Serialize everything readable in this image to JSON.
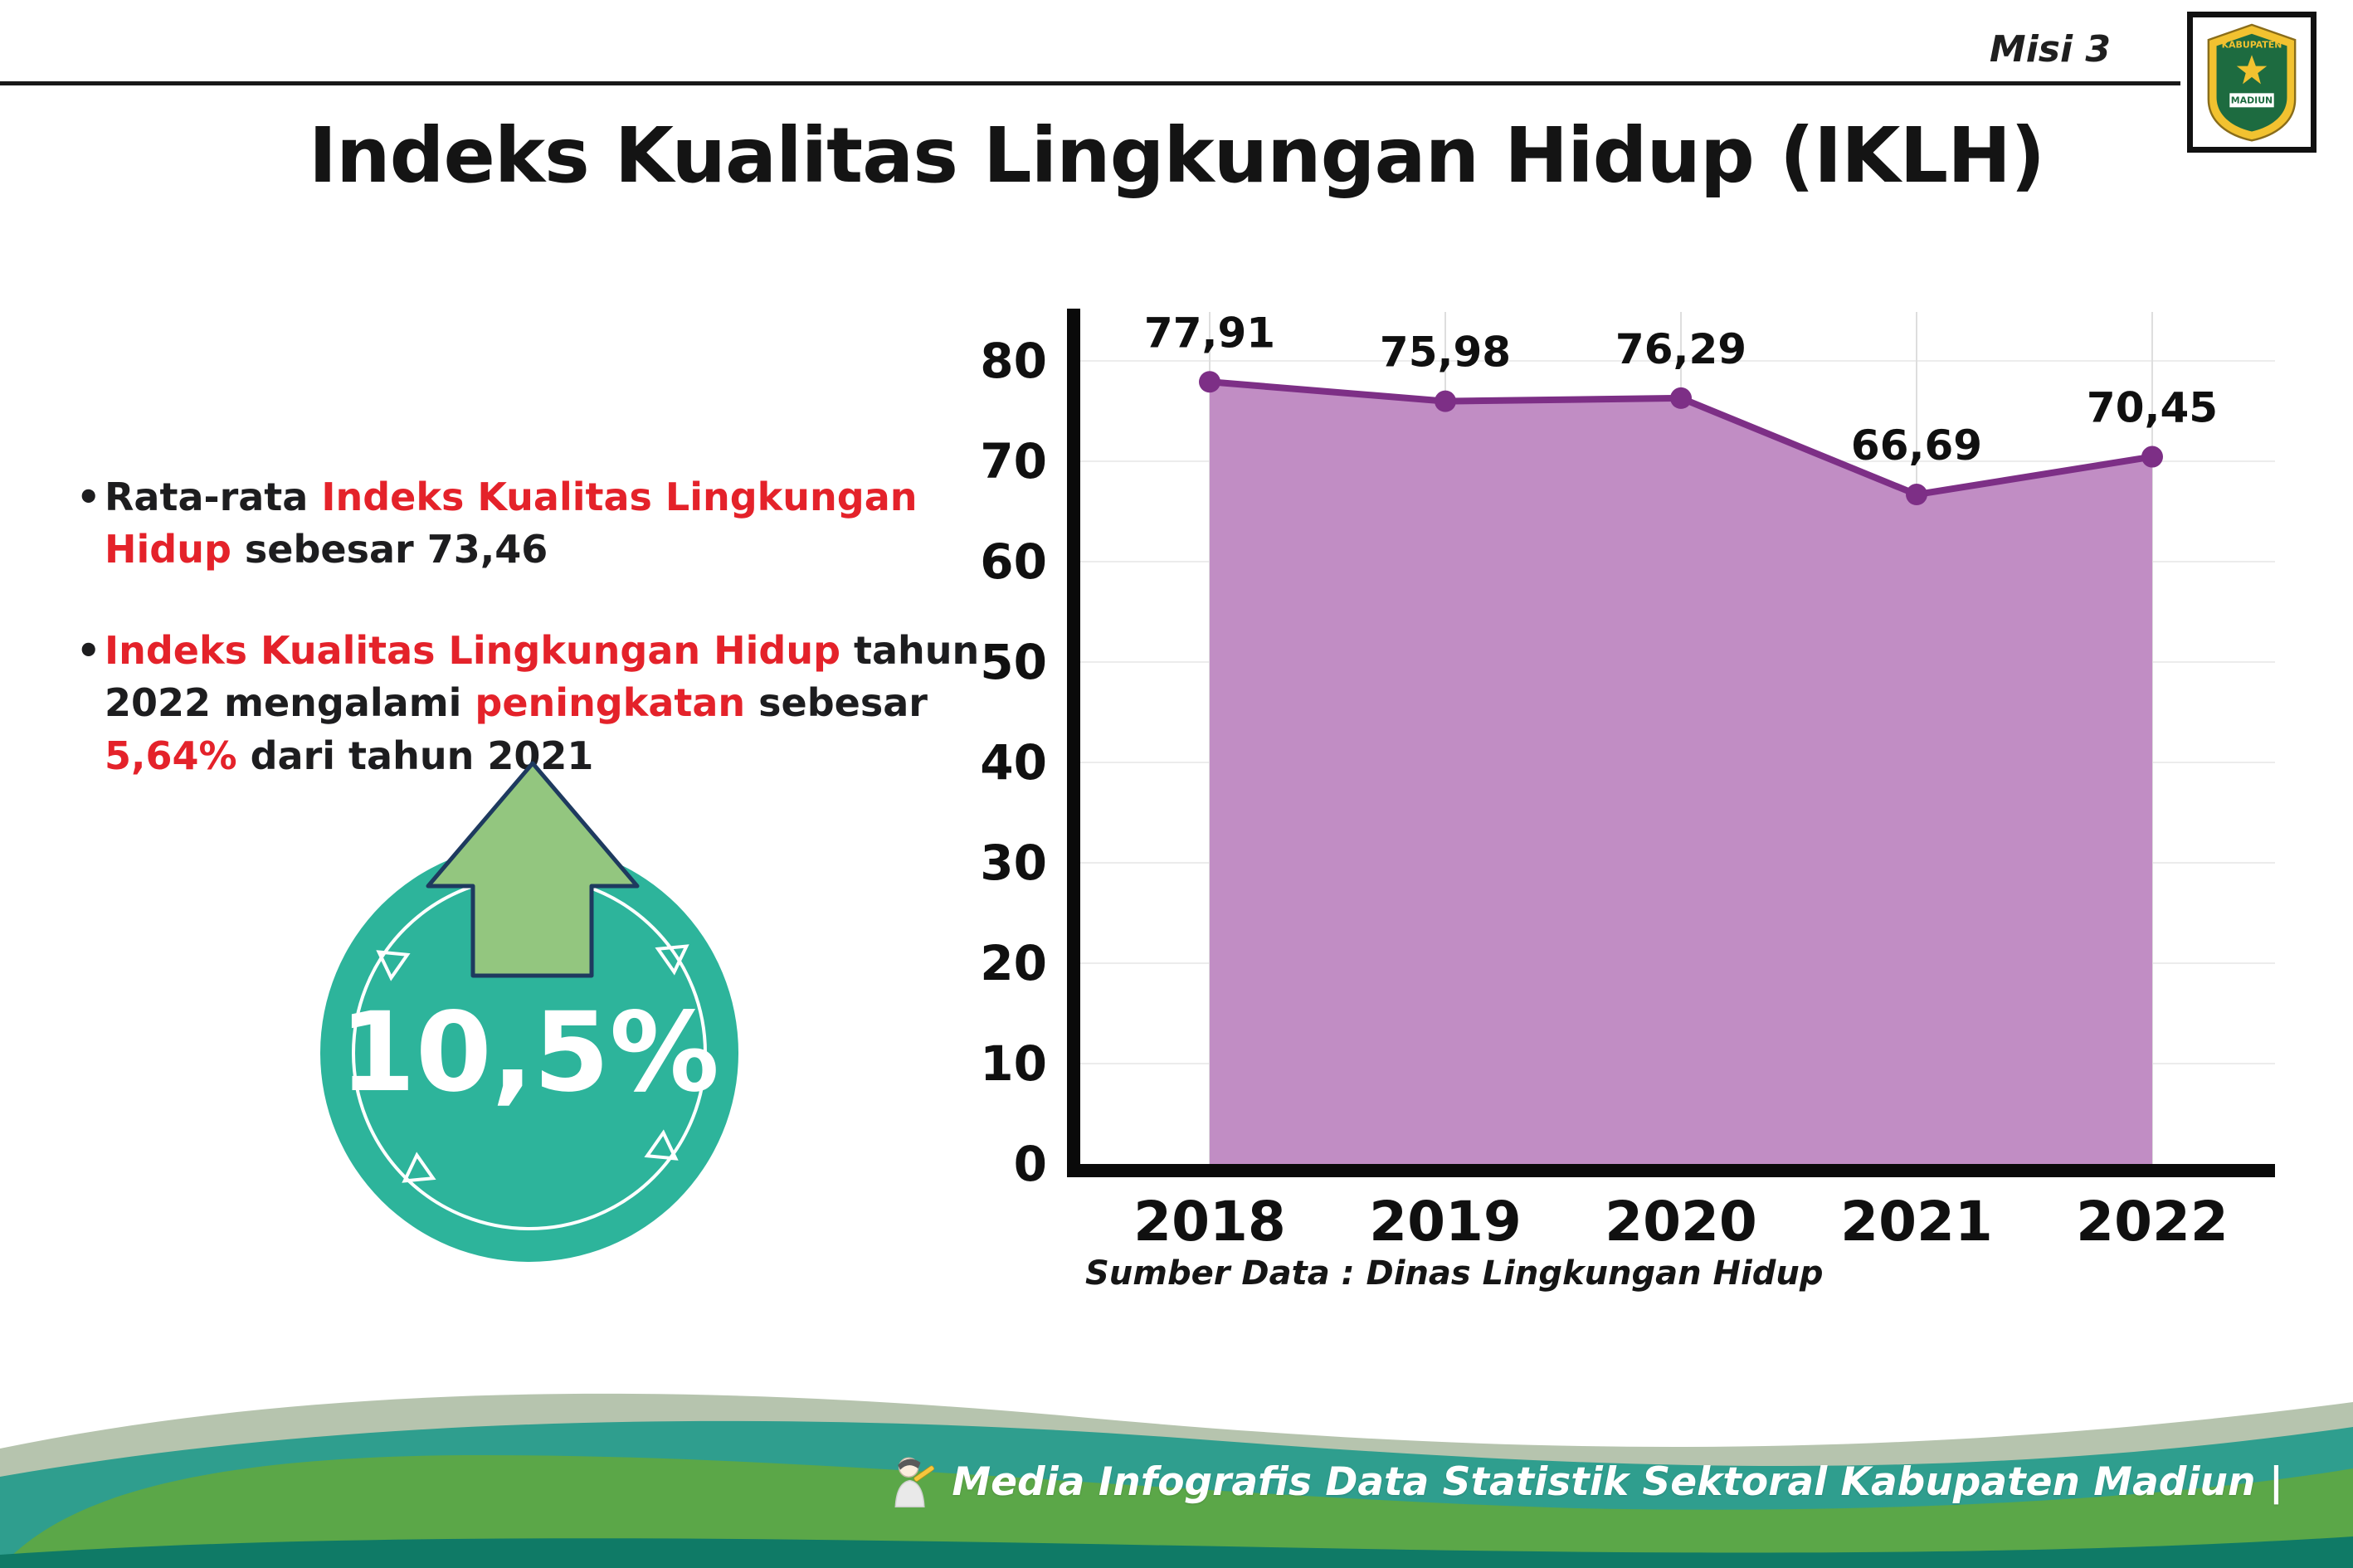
{
  "header": {
    "misi_label": "Misi 3",
    "title": "Indeks Kualitas Lingkungan Hidup (IKLH)",
    "logo": {
      "top_text": "KABUPATEN",
      "bottom_text": "MADIUN"
    }
  },
  "bullets": [
    {
      "segments": [
        {
          "text": "Rata-rata ",
          "emphasis": false
        },
        {
          "text": "Indeks Kualitas Lingkungan Hidup",
          "emphasis": true
        },
        {
          "text": " sebesar 73,46",
          "emphasis": false
        }
      ]
    },
    {
      "segments": [
        {
          "text": "Indeks Kualitas Lingkungan Hidup",
          "emphasis": true
        },
        {
          "text": " tahun 2022 mengalami ",
          "emphasis": false
        },
        {
          "text": "peningkatan",
          "emphasis": true
        },
        {
          "text": " sebesar ",
          "emphasis": false
        },
        {
          "text": "5,64%",
          "emphasis": true
        },
        {
          "text": " dari tahun 2021",
          "emphasis": false
        }
      ]
    }
  ],
  "increase_badge": {
    "value": "10,5%"
  },
  "chart_data": {
    "type": "area",
    "categories": [
      "2018",
      "2019",
      "2020",
      "2021",
      "2022"
    ],
    "values": [
      77.91,
      75.98,
      76.29,
      66.69,
      70.45
    ],
    "point_labels": [
      "77,91",
      "75,98",
      "76,29",
      "66,69",
      "70,45"
    ],
    "ylim": [
      0,
      80
    ],
    "yticks": [
      0,
      10,
      20,
      30,
      40,
      50,
      60,
      70,
      80
    ],
    "grid": true,
    "legend": "none",
    "colors": {
      "area": "#c18dc4",
      "line": "#7d2f86",
      "point": "#7d2f86",
      "axis": "#0a0a0a",
      "gridline": "#dedede"
    },
    "source": "Sumber Data : Dinas Lingkungan Hidup"
  },
  "footer": {
    "text": "Media Infografis Data Statistik Sektoral Kabupaten Madiun |"
  },
  "colors": {
    "accent_red": "#e4222a",
    "badge_teal": "#2db49b",
    "arrow_green": "#93c67f",
    "arrow_outline": "#1e3a5f",
    "footer_sage": "#b6c4ae",
    "footer_teal": "#2f9e8e",
    "footer_green": "#5ba748",
    "footer_dark_teal": "#0f7a66"
  }
}
